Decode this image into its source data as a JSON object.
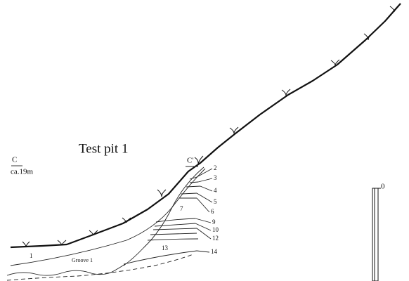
{
  "title": "Test pit 1",
  "datum": {
    "label": "C",
    "elevation": "ca.19m"
  },
  "section_end": "C'",
  "layers": [
    "1",
    "Groove 1",
    "2",
    "3",
    "4",
    "5",
    "6",
    "7",
    "9",
    "10",
    "12",
    "13",
    "14"
  ],
  "scale": {
    "label": "0"
  }
}
